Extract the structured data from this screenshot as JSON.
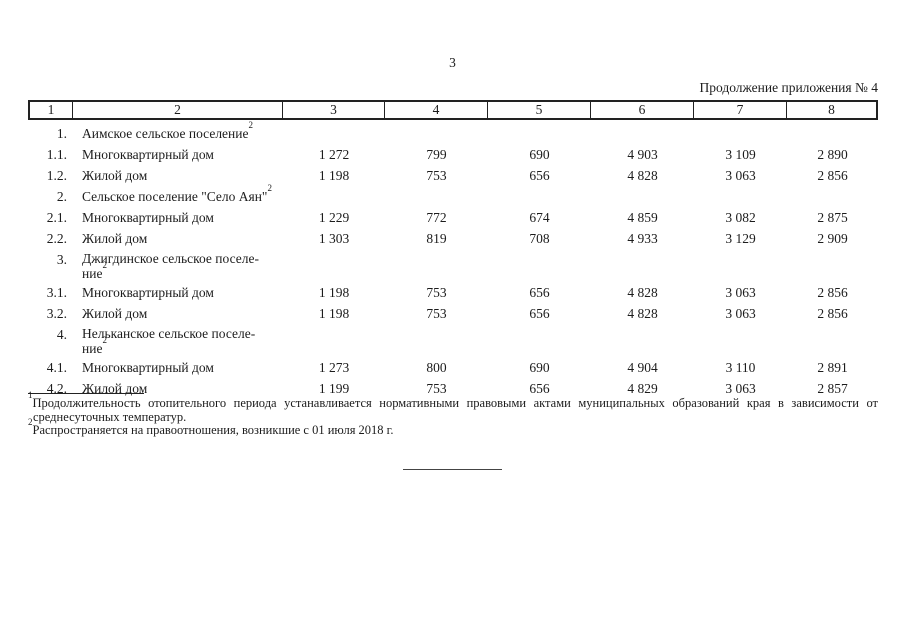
{
  "page": {
    "number": "3",
    "continuation": "Продолжение приложения № 4"
  },
  "table": {
    "header": [
      "1",
      "2",
      "3",
      "4",
      "5",
      "6",
      "7",
      "8"
    ],
    "rows": [
      {
        "num": "1.",
        "name": "Аимское сельское поселение",
        "sup": "2"
      },
      {
        "num": "1.1.",
        "name": "Многоквартирный дом",
        "values": [
          "1 272",
          "799",
          "690",
          "4 903",
          "3 109",
          "2 890"
        ]
      },
      {
        "num": "1.2.",
        "name": "Жилой дом",
        "values": [
          "1 198",
          "753",
          "656",
          "4 828",
          "3 063",
          "2 856"
        ]
      },
      {
        "num": "2.",
        "name": "Сельское поселение \"Село Аян\"",
        "sup": "2"
      },
      {
        "num": "2.1.",
        "name": "Многоквартирный дом",
        "values": [
          "1 229",
          "772",
          "674",
          "4 859",
          "3 082",
          "2 875"
        ]
      },
      {
        "num": "2.2.",
        "name": "Жилой дом",
        "values": [
          "1 303",
          "819",
          "708",
          "4 933",
          "3 129",
          "2 909"
        ]
      },
      {
        "num": "3.",
        "name": "Джигдинское сельское поселе-",
        "name2": "ние",
        "sup": "2"
      },
      {
        "num": "3.1.",
        "name": "Многоквартирный дом",
        "values": [
          "1 198",
          "753",
          "656",
          "4 828",
          "3 063",
          "2 856"
        ]
      },
      {
        "num": "3.2.",
        "name": "Жилой дом",
        "values": [
          "1 198",
          "753",
          "656",
          "4 828",
          "3 063",
          "2 856"
        ]
      },
      {
        "num": "4.",
        "name": "Нельканское сельское поселе-",
        "name2": "ние",
        "sup": "2"
      },
      {
        "num": "4.1.",
        "name": "Многоквартирный дом",
        "values": [
          "1 273",
          "800",
          "690",
          "4 904",
          "3 110",
          "2 891"
        ]
      },
      {
        "num": "4.2.",
        "name": "Жилой дом",
        "values": [
          "1 199",
          "753",
          "656",
          "4 829",
          "3 063",
          "2 857"
        ]
      }
    ]
  },
  "footnotes": {
    "fn1_sup": "1",
    "fn1_text": "Продолжительность отопительного периода устанавливается нормативными правовыми актами муниципальных образований края в зависимости от среднесуточных температур.",
    "fn2_sup": "2",
    "fn2_text": "Распространяется на правоотношения, возникшие с 01 июля 2018 г."
  }
}
